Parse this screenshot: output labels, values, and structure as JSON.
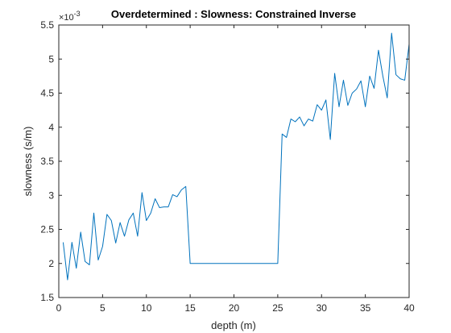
{
  "chart_data": {
    "type": "line",
    "title": "Overdetermined : Slowness: Constrained Inverse",
    "xlabel": "depth (m)",
    "ylabel": "slowness (s/m)",
    "y_exponent_label": "×10",
    "y_exponent_power": "-3",
    "xlim": [
      0,
      40
    ],
    "ylim": [
      1.5,
      5.5
    ],
    "y_scale_factor": 0.001,
    "x_ticks": [
      0,
      5,
      10,
      15,
      20,
      25,
      30,
      35,
      40
    ],
    "x_tick_labels": [
      "0",
      "5",
      "10",
      "15",
      "20",
      "25",
      "30",
      "35",
      "40"
    ],
    "y_ticks": [
      1.5,
      2,
      2.5,
      3,
      3.5,
      4,
      4.5,
      5,
      5.5
    ],
    "y_tick_labels": [
      "1.5",
      "2",
      "2.5",
      "3",
      "3.5",
      "4",
      "4.5",
      "5",
      "5.5"
    ],
    "grid": false,
    "box": true,
    "series": [
      {
        "color": "#0072bd",
        "x": [
          0.5,
          1,
          1.5,
          2,
          2.5,
          3,
          3.5,
          4,
          4.5,
          5,
          5.5,
          6,
          6.5,
          7,
          7.5,
          8,
          8.5,
          9,
          9.5,
          10,
          10.5,
          11,
          11.5,
          12,
          12.5,
          13,
          13.5,
          14,
          14.5,
          15,
          25,
          25.5,
          26,
          26.5,
          27,
          27.5,
          28,
          28.5,
          29,
          29.5,
          30,
          30.5,
          31,
          31.5,
          32,
          32.5,
          33,
          33.5,
          34,
          34.5,
          35,
          35.5,
          36,
          36.5,
          37,
          37.5,
          38,
          38.5,
          39,
          39.5,
          40
        ],
        "y": [
          2.31,
          1.76,
          2.31,
          1.93,
          2.46,
          2.03,
          1.98,
          2.74,
          2.05,
          2.25,
          2.72,
          2.63,
          2.3,
          2.6,
          2.4,
          2.64,
          2.74,
          2.4,
          3.04,
          2.63,
          2.74,
          2.95,
          2.82,
          2.83,
          2.83,
          3.01,
          2.98,
          3.08,
          3.13,
          2.0,
          2.0,
          3.9,
          3.85,
          4.12,
          4.08,
          4.15,
          4.02,
          4.12,
          4.09,
          4.33,
          4.25,
          4.4,
          3.82,
          4.79,
          4.3,
          4.69,
          4.32,
          4.5,
          4.56,
          4.68,
          4.3,
          4.75,
          4.57,
          5.13,
          4.75,
          4.43,
          5.38,
          4.77,
          4.71,
          4.69,
          5.22
        ]
      }
    ]
  }
}
